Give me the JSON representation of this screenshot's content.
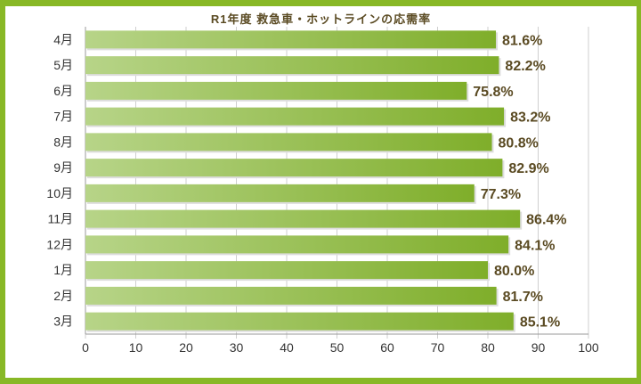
{
  "chart_data": {
    "type": "bar",
    "orientation": "horizontal",
    "title": "R1年度 救急車・ホットラインの応需率",
    "categories": [
      "4月",
      "5月",
      "6月",
      "7月",
      "8月",
      "9月",
      "10月",
      "11月",
      "12月",
      "1月",
      "2月",
      "3月"
    ],
    "values": [
      81.6,
      82.2,
      75.8,
      83.2,
      80.8,
      82.9,
      77.3,
      86.4,
      84.1,
      80.0,
      81.7,
      85.1
    ],
    "data_labels": [
      "81.6%",
      "82.2%",
      "75.8%",
      "83.2%",
      "80.8%",
      "82.9%",
      "77.3%",
      "86.4%",
      "84.1%",
      "80.0%",
      "81.7%",
      "85.1%"
    ],
    "xlim": [
      0,
      100
    ],
    "x_ticks": [
      "0",
      "10",
      "20",
      "30",
      "40",
      "50",
      "60",
      "70",
      "80",
      "90",
      "100"
    ],
    "grid": true,
    "colors": {
      "bar_start": "#b7d488",
      "bar_end": "#7fae2a",
      "label": "#5a4a22",
      "frame": "#88b826"
    }
  }
}
